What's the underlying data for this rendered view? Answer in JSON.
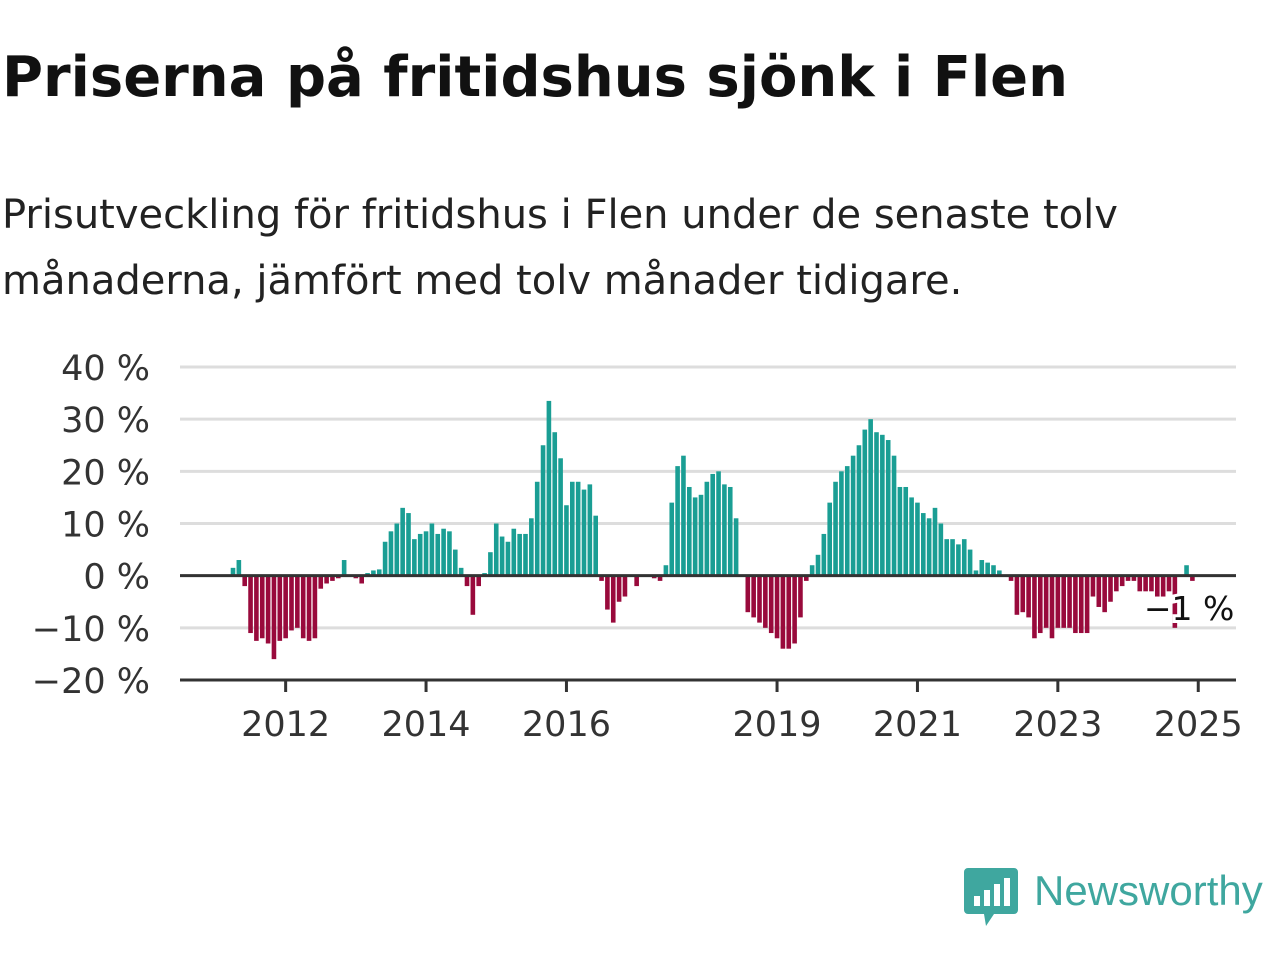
{
  "title": "Priserna på fritidshus sjönk i Flen",
  "subtitle": "Prisutveckling för fritidshus i Flen under de senaste tolv månaderna, jämfört med tolv månader tidigare.",
  "brand": {
    "name": "Newsworthy",
    "icon": "newsworthy-logo-icon"
  },
  "colors": {
    "positive": "#1a9e94",
    "negative": "#990a3c",
    "grid": "#dddddd",
    "axis": "#333333",
    "brand": "#3fa79f"
  },
  "chart_data": {
    "type": "bar",
    "title": "",
    "xlabel": "",
    "ylabel": "",
    "ylim": [
      -20,
      40
    ],
    "y_ticks": [
      40,
      30,
      20,
      10,
      0,
      -10,
      -20
    ],
    "y_tick_labels": [
      "40 %",
      "30 %",
      "20 %",
      "10 %",
      "0 %",
      "−10 %",
      "−20 %"
    ],
    "x_ticks": [
      {
        "label": "2012",
        "month_index": 9
      },
      {
        "label": "2014",
        "month_index": 33
      },
      {
        "label": "2016",
        "month_index": 57
      },
      {
        "label": "2019",
        "month_index": 93
      },
      {
        "label": "2021",
        "month_index": 117
      },
      {
        "label": "2023",
        "month_index": 141
      },
      {
        "label": "2025",
        "month_index": 165
      }
    ],
    "last_value_label": "−1 %",
    "grid": true,
    "series": [
      {
        "values": [
          1.5,
          3,
          -2,
          -11,
          -12.5,
          -12,
          -13,
          -16,
          -12.5,
          -12,
          -10.5,
          -10,
          -12,
          -12.5,
          -12,
          -2.5,
          -1.5,
          -1,
          -0.5,
          3,
          0,
          -0.5,
          -1.5,
          0.5,
          1,
          1.2,
          6.5,
          8.5,
          10,
          13,
          12,
          7,
          8,
          8.5,
          10,
          8,
          9,
          8.5,
          5,
          1.5,
          -2,
          -7.5,
          -2,
          0.5,
          4.5,
          10,
          7.5,
          6.5,
          9,
          8,
          8,
          11,
          18,
          25,
          33.5,
          27.5,
          22.5,
          13.5,
          18,
          18,
          16.5,
          17.5,
          11.5,
          -1,
          -6.5,
          -9,
          -5,
          -4,
          0,
          -2,
          0,
          0,
          -0.5,
          -1,
          2,
          14,
          21,
          23,
          17,
          15,
          15.5,
          18,
          19.5,
          20,
          17.5,
          17,
          11,
          0,
          -7,
          -8,
          -9,
          -10,
          -11,
          -12,
          -14,
          -14,
          -13,
          -8,
          -1,
          2,
          4,
          8,
          14,
          18,
          20,
          21,
          23,
          25,
          28,
          30,
          27.5,
          27,
          26,
          23,
          17,
          17,
          15,
          14,
          12,
          11,
          13,
          10,
          7,
          7,
          6,
          7,
          5,
          1,
          3,
          2.5,
          2,
          1,
          0,
          -1,
          -7.5,
          -7,
          -8,
          -12,
          -11,
          -10,
          -12,
          -10,
          -10,
          -10,
          -11,
          -11,
          -11,
          -4,
          -6,
          -7,
          -5,
          -3,
          -2,
          -1,
          -1,
          -3,
          -3,
          -3,
          -4,
          -4,
          -3,
          -10,
          0,
          2,
          -1
        ]
      }
    ]
  }
}
